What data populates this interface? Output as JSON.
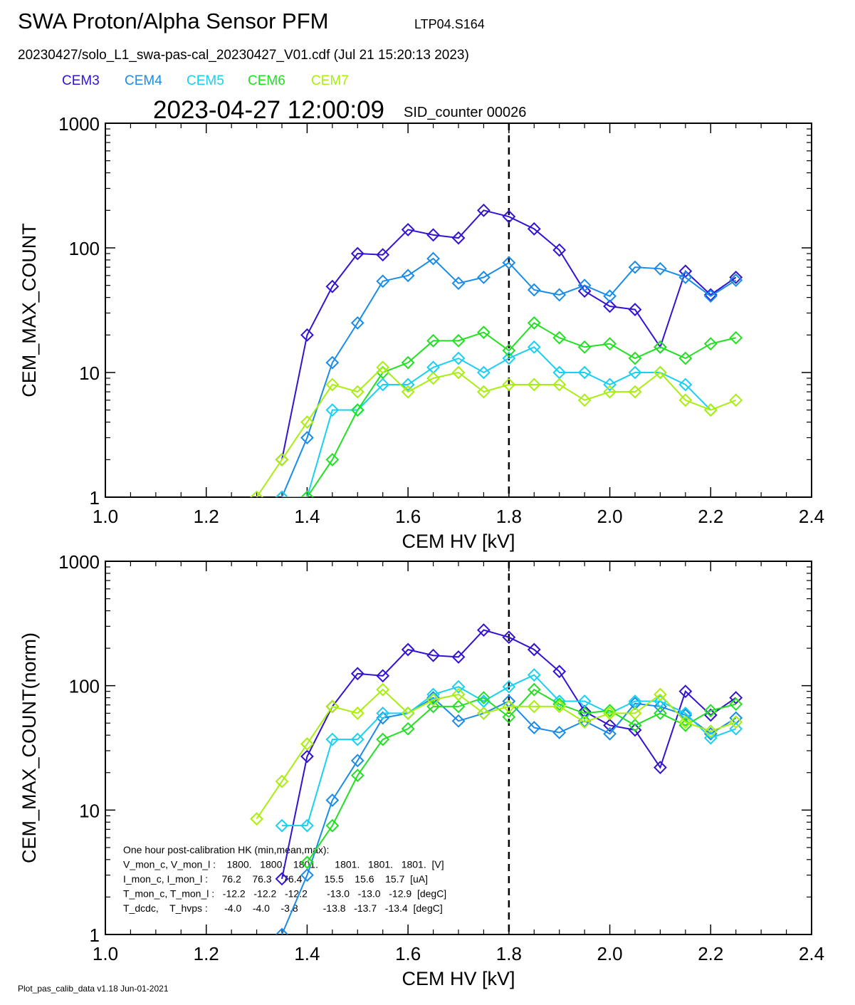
{
  "header": {
    "title": "SWA Proton/Alpha Sensor PFM",
    "tag": "LTP04.S164",
    "file": "20230427/solo_L1_swa-pas-cal_20230427_V01.cdf  (Jul 21 15:20:13 2023)",
    "timestamp": "2023-04-27 12:00:09",
    "sid": "SID_counter 00026"
  },
  "footer": "Plot_pas_calib_data v1.18 Jun-01-2021",
  "chart_data": [
    {
      "type": "line",
      "xlabel": "CEM HV [kV]",
      "ylabel": "CEM_MAX_COUNT",
      "log_y": true,
      "marker": "diamond",
      "xlim": [
        1.0,
        2.4
      ],
      "xticks": [
        {
          "value": 1.0,
          "label": "1.0"
        },
        1.2,
        1.4,
        1.6,
        1.8,
        {
          "value": 2.0,
          "label": "2.0"
        },
        2.2,
        2.4
      ],
      "ylim": [
        1,
        1000
      ],
      "yticks": [
        1,
        10,
        100,
        1000
      ],
      "vline": 1.8,
      "x": [
        1.3,
        1.35,
        1.4,
        1.45,
        1.5,
        1.55,
        1.6,
        1.65,
        1.7,
        1.75,
        1.8,
        1.85,
        1.9,
        1.95,
        2.0,
        2.05,
        2.1,
        2.15,
        2.2,
        2.25
      ],
      "series": [
        {
          "name": "CEM3",
          "color": "#3412d4",
          "values": [
            null,
            2,
            20,
            49,
            90,
            88,
            140,
            127,
            120,
            200,
            178,
            142,
            96,
            45,
            34,
            32,
            16,
            65,
            42,
            58
          ]
        },
        {
          "name": "CEM4",
          "color": "#1a8ce8",
          "values": [
            null,
            1,
            3,
            12,
            25,
            54,
            60,
            82,
            52,
            58,
            76,
            46,
            42,
            50,
            41,
            70,
            68,
            58,
            41,
            55
          ]
        },
        {
          "name": "CEM5",
          "color": "#1ad0f0",
          "values": [
            null,
            1,
            1,
            5,
            5,
            8,
            8,
            11,
            13,
            10,
            13,
            16,
            10,
            10,
            8,
            10,
            10,
            8,
            5,
            null
          ]
        },
        {
          "name": "CEM6",
          "color": "#22e022",
          "values": [
            null,
            null,
            1,
            2,
            5,
            10,
            12,
            18,
            18,
            21,
            15,
            25,
            19,
            16,
            17,
            13,
            16,
            13,
            17,
            19
          ]
        },
        {
          "name": "CEM7",
          "color": "#a8ee10",
          "values": [
            1,
            2,
            4,
            8,
            7,
            11,
            7,
            9,
            10,
            7,
            8,
            8,
            8,
            6,
            7,
            7,
            10,
            6,
            5,
            6
          ]
        }
      ]
    },
    {
      "type": "line",
      "xlabel": "CEM HV [kV]",
      "ylabel": "CEM_MAX_COUNT(norm)",
      "log_y": true,
      "marker": "diamond",
      "xlim": [
        1.0,
        2.4
      ],
      "xticks": [
        {
          "value": 1.0,
          "label": "1.0"
        },
        1.2,
        1.4,
        1.6,
        1.8,
        {
          "value": 2.0,
          "label": "2.0"
        },
        2.2,
        2.4
      ],
      "ylim": [
        1,
        1000
      ],
      "yticks": [
        1,
        10,
        100,
        1000
      ],
      "vline": 1.8,
      "annotations": [
        "One hour post-calibration HK (min,mean,max):",
        "V_mon_c, V_mon_l :    1800.   1800.   1801.      1801.   1801.   1801.  [V]",
        "I_mon_c, I_mon_l :     76.2    76.3    76.4        15.5    15.6    15.7  [uA]",
        "T_mon_c, T_mon_l :   -12.2   -12.2   -12.2       -13.0   -13.0   -12.9  [degC]",
        "T_dcdc,    T_hvps :      -4.0    -4.0    -3.8         -13.8   -13.7   -13.4  [degC]"
      ],
      "x": [
        1.3,
        1.35,
        1.4,
        1.45,
        1.5,
        1.55,
        1.6,
        1.65,
        1.7,
        1.75,
        1.8,
        1.85,
        1.9,
        1.95,
        2.0,
        2.05,
        2.1,
        2.15,
        2.2,
        2.25
      ],
      "series": [
        {
          "color": "#3412d4",
          "values": [
            null,
            2.8,
            27,
            68,
            125,
            120,
            195,
            175,
            170,
            280,
            245,
            195,
            130,
            62,
            48,
            44,
            22,
            90,
            58,
            80
          ]
        },
        {
          "color": "#1a8ce8",
          "values": [
            null,
            1,
            3,
            12,
            25,
            55,
            60,
            80,
            52,
            60,
            75,
            46,
            42,
            52,
            41,
            72,
            68,
            58,
            41,
            55
          ]
        },
        {
          "color": "#1ad0f0",
          "values": [
            null,
            7.5,
            7.5,
            37,
            37,
            60,
            60,
            85,
            98,
            75,
            98,
            122,
            75,
            75,
            60,
            75,
            75,
            60,
            38,
            45
          ]
        },
        {
          "color": "#22e022",
          "values": [
            null,
            null,
            3.8,
            7.5,
            19,
            37,
            45,
            68,
            68,
            80,
            56,
            93,
            71,
            60,
            63,
            48,
            60,
            48,
            63,
            71
          ]
        },
        {
          "color": "#a8ee10",
          "values": [
            8.5,
            17,
            34,
            68,
            60,
            93,
            60,
            77,
            85,
            60,
            68,
            68,
            68,
            51,
            60,
            60,
            85,
            51,
            43,
            51
          ]
        }
      ]
    }
  ]
}
